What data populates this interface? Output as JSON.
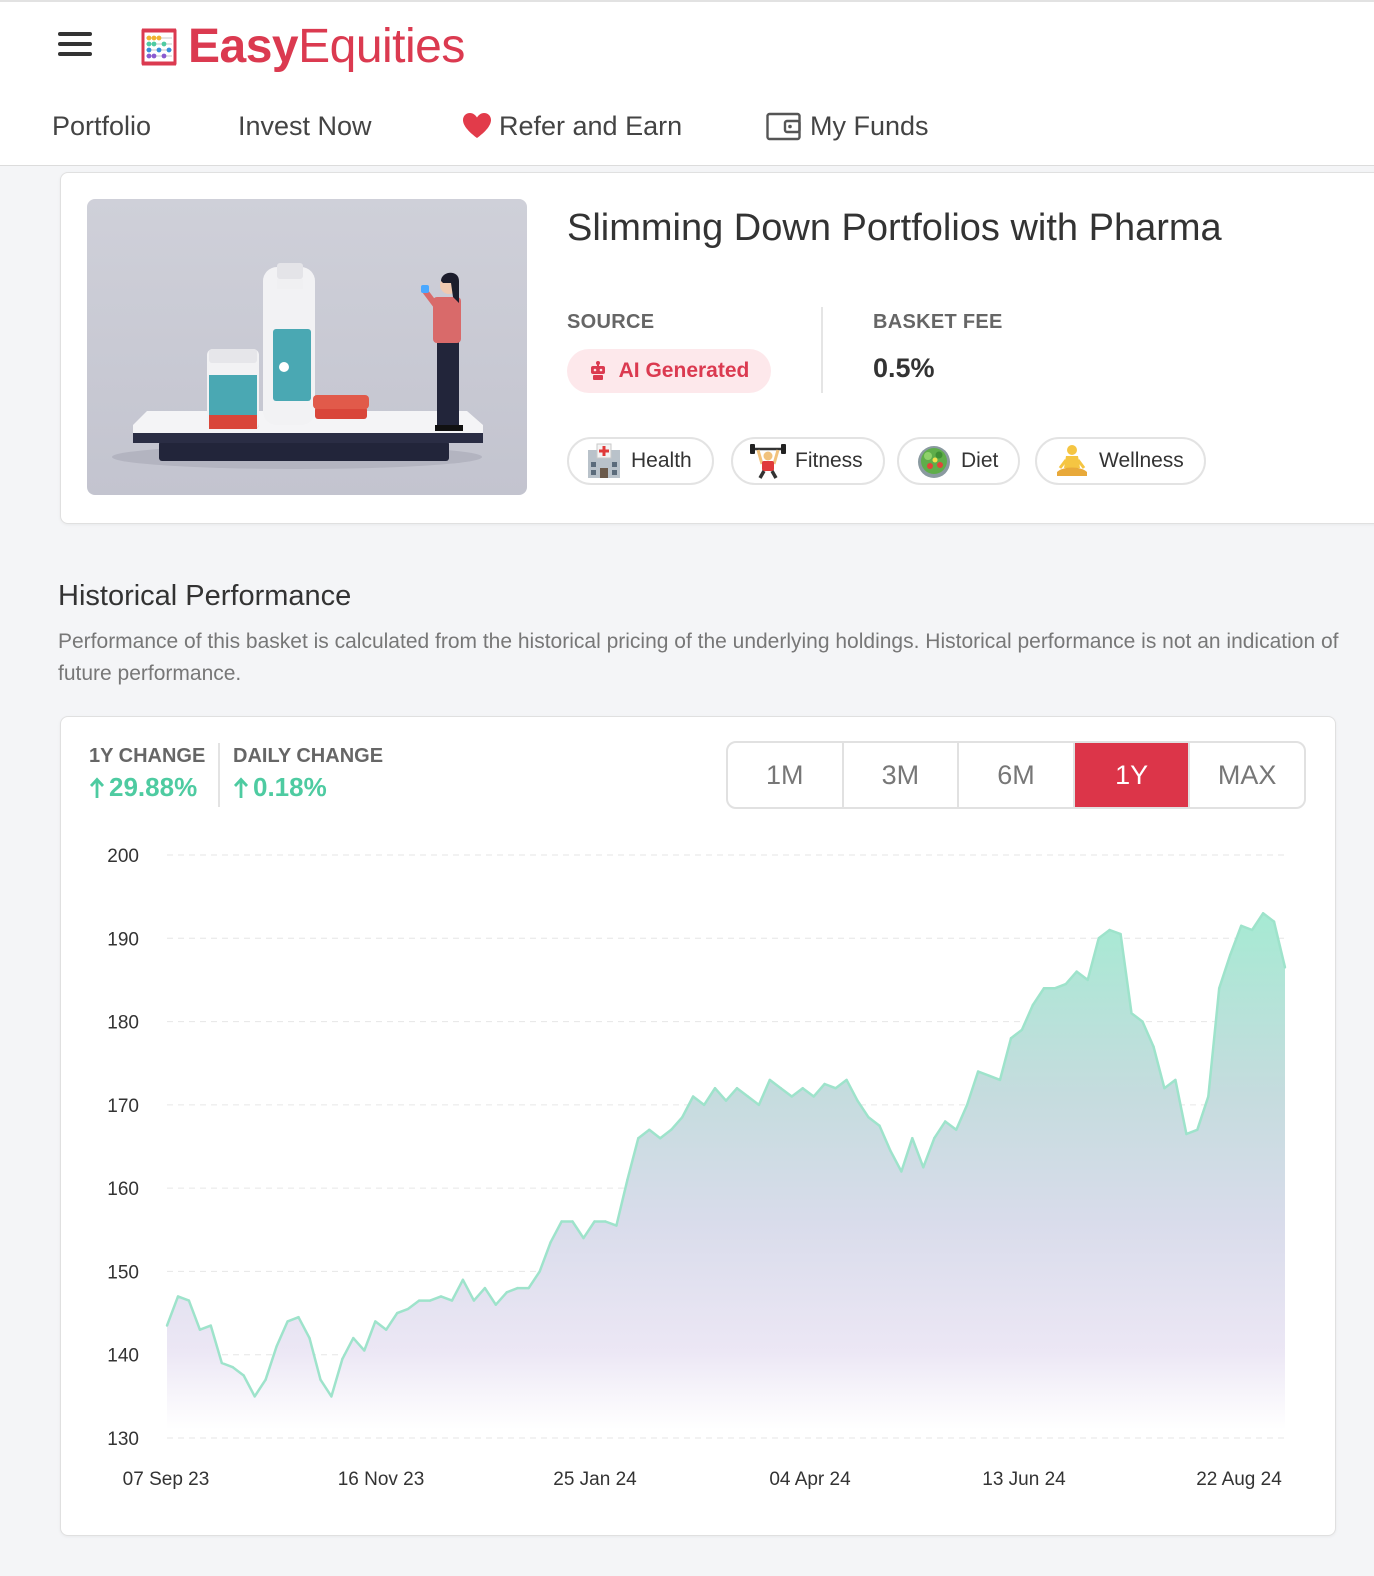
{
  "brand": {
    "easy": "Easy",
    "equities": "Equities",
    "icon": "abacus-icon",
    "color": "#db3a50"
  },
  "nav": [
    {
      "label": "Portfolio",
      "icon": ""
    },
    {
      "label": "Invest Now",
      "icon": ""
    },
    {
      "label": "Refer and Earn",
      "icon": "heart-icon"
    },
    {
      "label": "My Funds",
      "icon": "wallet-icon"
    }
  ],
  "basket": {
    "title": "Slimming Down Portfolios with Pharma",
    "source_label": "SOURCE",
    "source_value": "AI Generated",
    "fee_label": "BASKET FEE",
    "fee_value": "0.5%",
    "tags": [
      {
        "label": "Health",
        "icon": "hospital-icon"
      },
      {
        "label": "Fitness",
        "icon": "weightlifter-icon"
      },
      {
        "label": "Diet",
        "icon": "salad-icon"
      },
      {
        "label": "Wellness",
        "icon": "meditation-icon"
      }
    ]
  },
  "performance": {
    "title": "Historical Performance",
    "description": "Performance of this basket is calculated from the historical pricing of the underlying holdings. Historical performance is not an indication of future performance.",
    "change_1y_label": "1Y CHANGE",
    "change_1y_value": "29.88%",
    "daily_change_label": "DAILY CHANGE",
    "daily_change_value": "0.18%",
    "ranges": [
      "1M",
      "3M",
      "6M",
      "1Y",
      "MAX"
    ],
    "active_range": "1Y",
    "accent": "#dc3549",
    "positive_color": "#4ecba1"
  },
  "chart_data": {
    "type": "area",
    "ylim": [
      130,
      200
    ],
    "yticks": [
      200,
      190,
      180,
      170,
      160,
      150,
      140,
      130
    ],
    "xticks": [
      "07 Sep 23",
      "16 Nov 23",
      "25 Jan 24",
      "04 Apr 24",
      "13 Jun 24",
      "22 Aug 24"
    ],
    "grid": true,
    "series": [
      {
        "values": [
          143.5,
          147,
          146.5,
          143,
          143.5,
          139,
          138.5,
          137.5,
          135,
          137,
          141,
          144,
          144.5,
          142,
          137,
          135,
          139.5,
          142,
          140.5,
          144,
          143,
          145,
          145.5,
          146.5,
          146.5,
          147,
          146.5,
          149,
          146.5,
          148,
          146,
          147.5,
          148,
          148,
          150,
          153.5,
          156,
          156,
          154,
          156,
          156,
          155.5,
          161,
          166,
          167,
          166,
          167,
          168.5,
          171,
          170,
          172,
          170.5,
          172,
          171,
          170,
          173,
          172,
          171,
          172,
          171,
          172.5,
          172,
          173,
          170.5,
          168.5,
          167.5,
          164.5,
          162,
          166,
          162.5,
          166,
          168,
          167,
          170,
          174,
          173.5,
          173,
          178,
          179,
          182,
          184,
          184,
          184.5,
          186,
          185,
          190,
          191,
          190.5,
          181,
          180,
          177,
          172,
          173,
          166.5,
          167,
          171,
          184,
          188,
          191.5,
          191,
          193,
          192,
          186.5
        ]
      }
    ]
  }
}
